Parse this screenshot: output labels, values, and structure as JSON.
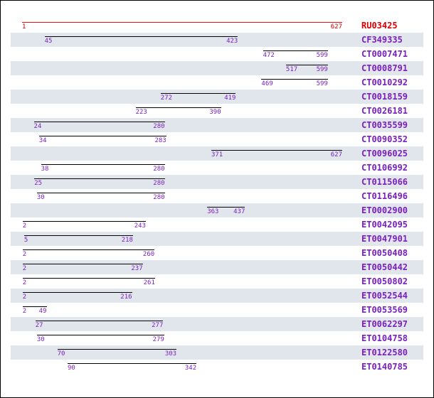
{
  "colors": {
    "reference_bar": "#ee1111",
    "reference_label": "#dd0000",
    "hit_bar": "#000000",
    "hit_label": "#7a1fbf",
    "shaded_row": "#e1e6ec"
  },
  "scale": {
    "min": 1,
    "max": 627
  },
  "alignments": [
    {
      "id": "RU03425",
      "start": 1,
      "end": 627,
      "reference": true
    },
    {
      "id": "CF349335",
      "start": 45,
      "end": 423
    },
    {
      "id": "CT0007471",
      "start": 472,
      "end": 599
    },
    {
      "id": "CT0008791",
      "start": 517,
      "end": 599
    },
    {
      "id": "CT0010292",
      "start": 469,
      "end": 599
    },
    {
      "id": "CT0018159",
      "start": 272,
      "end": 419
    },
    {
      "id": "CT0026181",
      "start": 223,
      "end": 390
    },
    {
      "id": "CT0035599",
      "start": 24,
      "end": 280
    },
    {
      "id": "CT0090352",
      "start": 34,
      "end": 283
    },
    {
      "id": "CT0096025",
      "start": 371,
      "end": 627
    },
    {
      "id": "CT0106992",
      "start": 38,
      "end": 280
    },
    {
      "id": "CT0115066",
      "start": 25,
      "end": 280
    },
    {
      "id": "CT0116496",
      "start": 30,
      "end": 280
    },
    {
      "id": "ET0002900",
      "start": 363,
      "end": 437
    },
    {
      "id": "ET0042095",
      "start": 2,
      "end": 243
    },
    {
      "id": "ET0047901",
      "start": 5,
      "end": 218
    },
    {
      "id": "ET0050408",
      "start": 2,
      "end": 260
    },
    {
      "id": "ET0050442",
      "start": 2,
      "end": 237
    },
    {
      "id": "ET0050802",
      "start": 2,
      "end": 261
    },
    {
      "id": "ET0052544",
      "start": 2,
      "end": 216
    },
    {
      "id": "ET0053569",
      "start": 2,
      "end": 49
    },
    {
      "id": "ET0062297",
      "start": 27,
      "end": 277
    },
    {
      "id": "ET0104758",
      "start": 30,
      "end": 279
    },
    {
      "id": "ET0122580",
      "start": 70,
      "end": 303
    },
    {
      "id": "ET0140785",
      "start": 90,
      "end": 342
    }
  ]
}
